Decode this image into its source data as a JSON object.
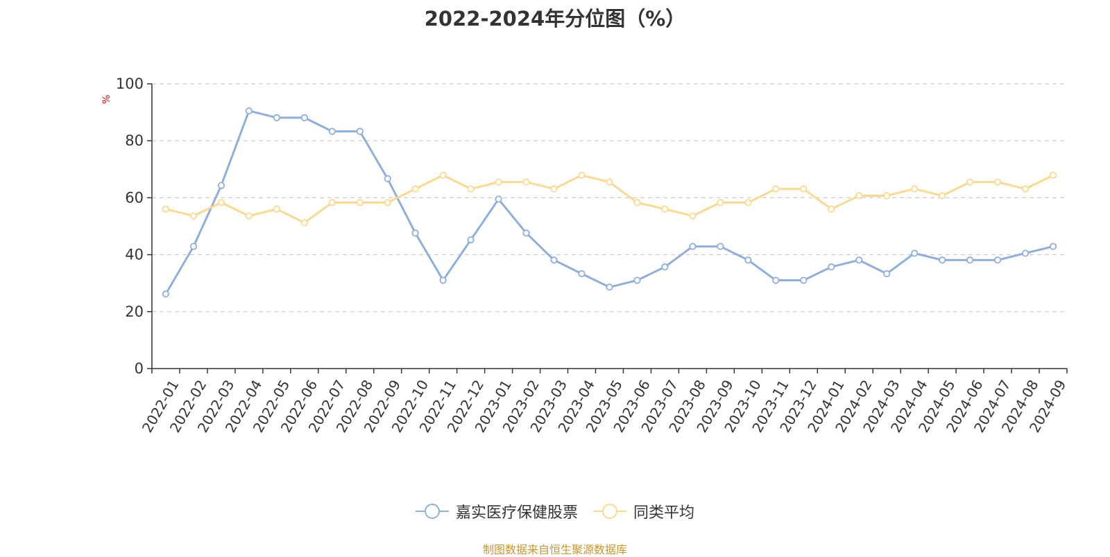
{
  "chart_data": {
    "type": "line",
    "title": "2022-2024年分位图（%）",
    "ylabel": "%",
    "ylim": [
      0,
      100
    ],
    "y_ticks": [
      0,
      20,
      40,
      60,
      80,
      100
    ],
    "grid": true,
    "legend_position": "bottom",
    "categories": [
      "2022-01",
      "2022-02",
      "2022-03",
      "2022-04",
      "2022-05",
      "2022-06",
      "2022-07",
      "2022-08",
      "2022-09",
      "2022-10",
      "2022-11",
      "2022-12",
      "2023-01",
      "2023-02",
      "2023-03",
      "2023-04",
      "2023-05",
      "2023-06",
      "2023-07",
      "2023-08",
      "2023-09",
      "2023-10",
      "2023-11",
      "2023-12",
      "2024-01",
      "2024-02",
      "2024-03",
      "2024-04",
      "2024-05",
      "2024-06",
      "2024-07",
      "2024-08",
      "2024-09"
    ],
    "series": [
      {
        "name": "嘉实医疗保健股票",
        "color": "#8eaedc",
        "values": [
          26.2,
          42.9,
          64.3,
          90.5,
          88.1,
          88.1,
          83.3,
          83.3,
          66.7,
          47.6,
          31.0,
          45.2,
          59.5,
          47.6,
          38.1,
          33.3,
          28.6,
          31.0,
          35.7,
          42.9,
          42.9,
          38.1,
          31.0,
          31.0,
          35.7,
          38.1,
          33.3,
          40.5,
          38.1,
          38.1,
          38.1,
          40.5,
          42.9
        ]
      },
      {
        "name": "同类平均",
        "color": "#fcd88f",
        "values": [
          56.0,
          53.6,
          58.3,
          53.6,
          56.0,
          51.2,
          58.3,
          58.3,
          58.3,
          63.1,
          67.9,
          63.1,
          65.5,
          65.5,
          63.1,
          67.9,
          65.5,
          58.3,
          56.0,
          53.6,
          58.3,
          58.3,
          63.1,
          63.1,
          56.0,
          60.7,
          60.7,
          63.1,
          60.7,
          65.5,
          65.5,
          63.1,
          67.9
        ]
      }
    ],
    "source": "制图数据来自恒生聚源数据库"
  }
}
